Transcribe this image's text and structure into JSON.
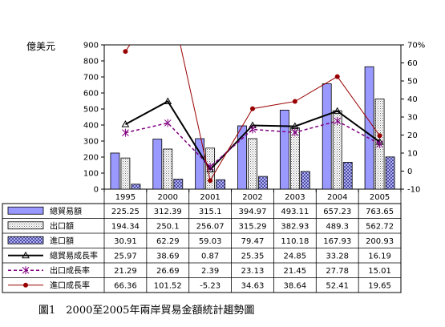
{
  "chart_data": {
    "type": "bar",
    "y_unit_label": "億美元",
    "categories": [
      "1995",
      "2000",
      "2001",
      "2002",
      "2003",
      "2004",
      "2005"
    ],
    "y_left": {
      "min": 0,
      "max": 900,
      "ticks": [
        "0",
        "100",
        "200",
        "300",
        "400",
        "500",
        "600",
        "700",
        "800",
        "900"
      ]
    },
    "y_right": {
      "min": -10,
      "max": 70,
      "ticks": [
        "-10",
        "0",
        "10",
        "20",
        "30",
        "40",
        "50",
        "60",
        "70%"
      ]
    },
    "series": [
      {
        "name": "總貿易額",
        "type": "bar",
        "axis": "left",
        "color": "#9999ff",
        "values": [
          225.25,
          312.39,
          315.1,
          394.97,
          493.11,
          657.23,
          763.65
        ],
        "labels": [
          "225.25",
          "312.39",
          "315.1",
          "394.97",
          "493.11",
          "657.23",
          "763.65"
        ]
      },
      {
        "name": "出口額",
        "type": "bar",
        "axis": "left",
        "color": "#ffffff",
        "values": [
          194.34,
          250.1,
          256.07,
          315.29,
          382.93,
          489.3,
          562.72
        ],
        "labels": [
          "194.34",
          "250.1",
          "256.07",
          "315.29",
          "382.93",
          "489.3",
          "562.72"
        ]
      },
      {
        "name": "進口額",
        "type": "bar",
        "axis": "left",
        "color": "#333399",
        "values": [
          30.91,
          62.29,
          59.03,
          79.47,
          110.18,
          167.93,
          200.93
        ],
        "labels": [
          "30.91",
          "62.29",
          "59.03",
          "79.47",
          "110.18",
          "167.93",
          "200.93"
        ]
      },
      {
        "name": "總貿易成長率",
        "type": "line",
        "axis": "right",
        "color": "#000000",
        "values": [
          25.97,
          38.69,
          0.87,
          25.35,
          24.85,
          33.28,
          16.19
        ],
        "labels": [
          "25.97",
          "38.69",
          "0.87",
          "25.35",
          "24.85",
          "33.28",
          "16.19"
        ]
      },
      {
        "name": "出口成長率",
        "type": "line",
        "axis": "right",
        "color": "#800080",
        "values": [
          21.29,
          26.69,
          2.39,
          23.13,
          21.45,
          27.78,
          15.01
        ],
        "labels": [
          "21.29",
          "26.69",
          "2.39",
          "23.13",
          "21.45",
          "27.78",
          "15.01"
        ]
      },
      {
        "name": "進口成長率",
        "type": "line",
        "axis": "right",
        "color": "#990000",
        "values": [
          66.36,
          101.52,
          -5.23,
          34.63,
          38.64,
          52.41,
          19.65
        ],
        "labels": [
          "66.36",
          "101.52",
          "-5.23",
          "34.63",
          "38.64",
          "52.41",
          "19.65"
        ]
      }
    ]
  },
  "caption": "圖1　2000至2005年兩岸貿易金額統計趨勢圖"
}
